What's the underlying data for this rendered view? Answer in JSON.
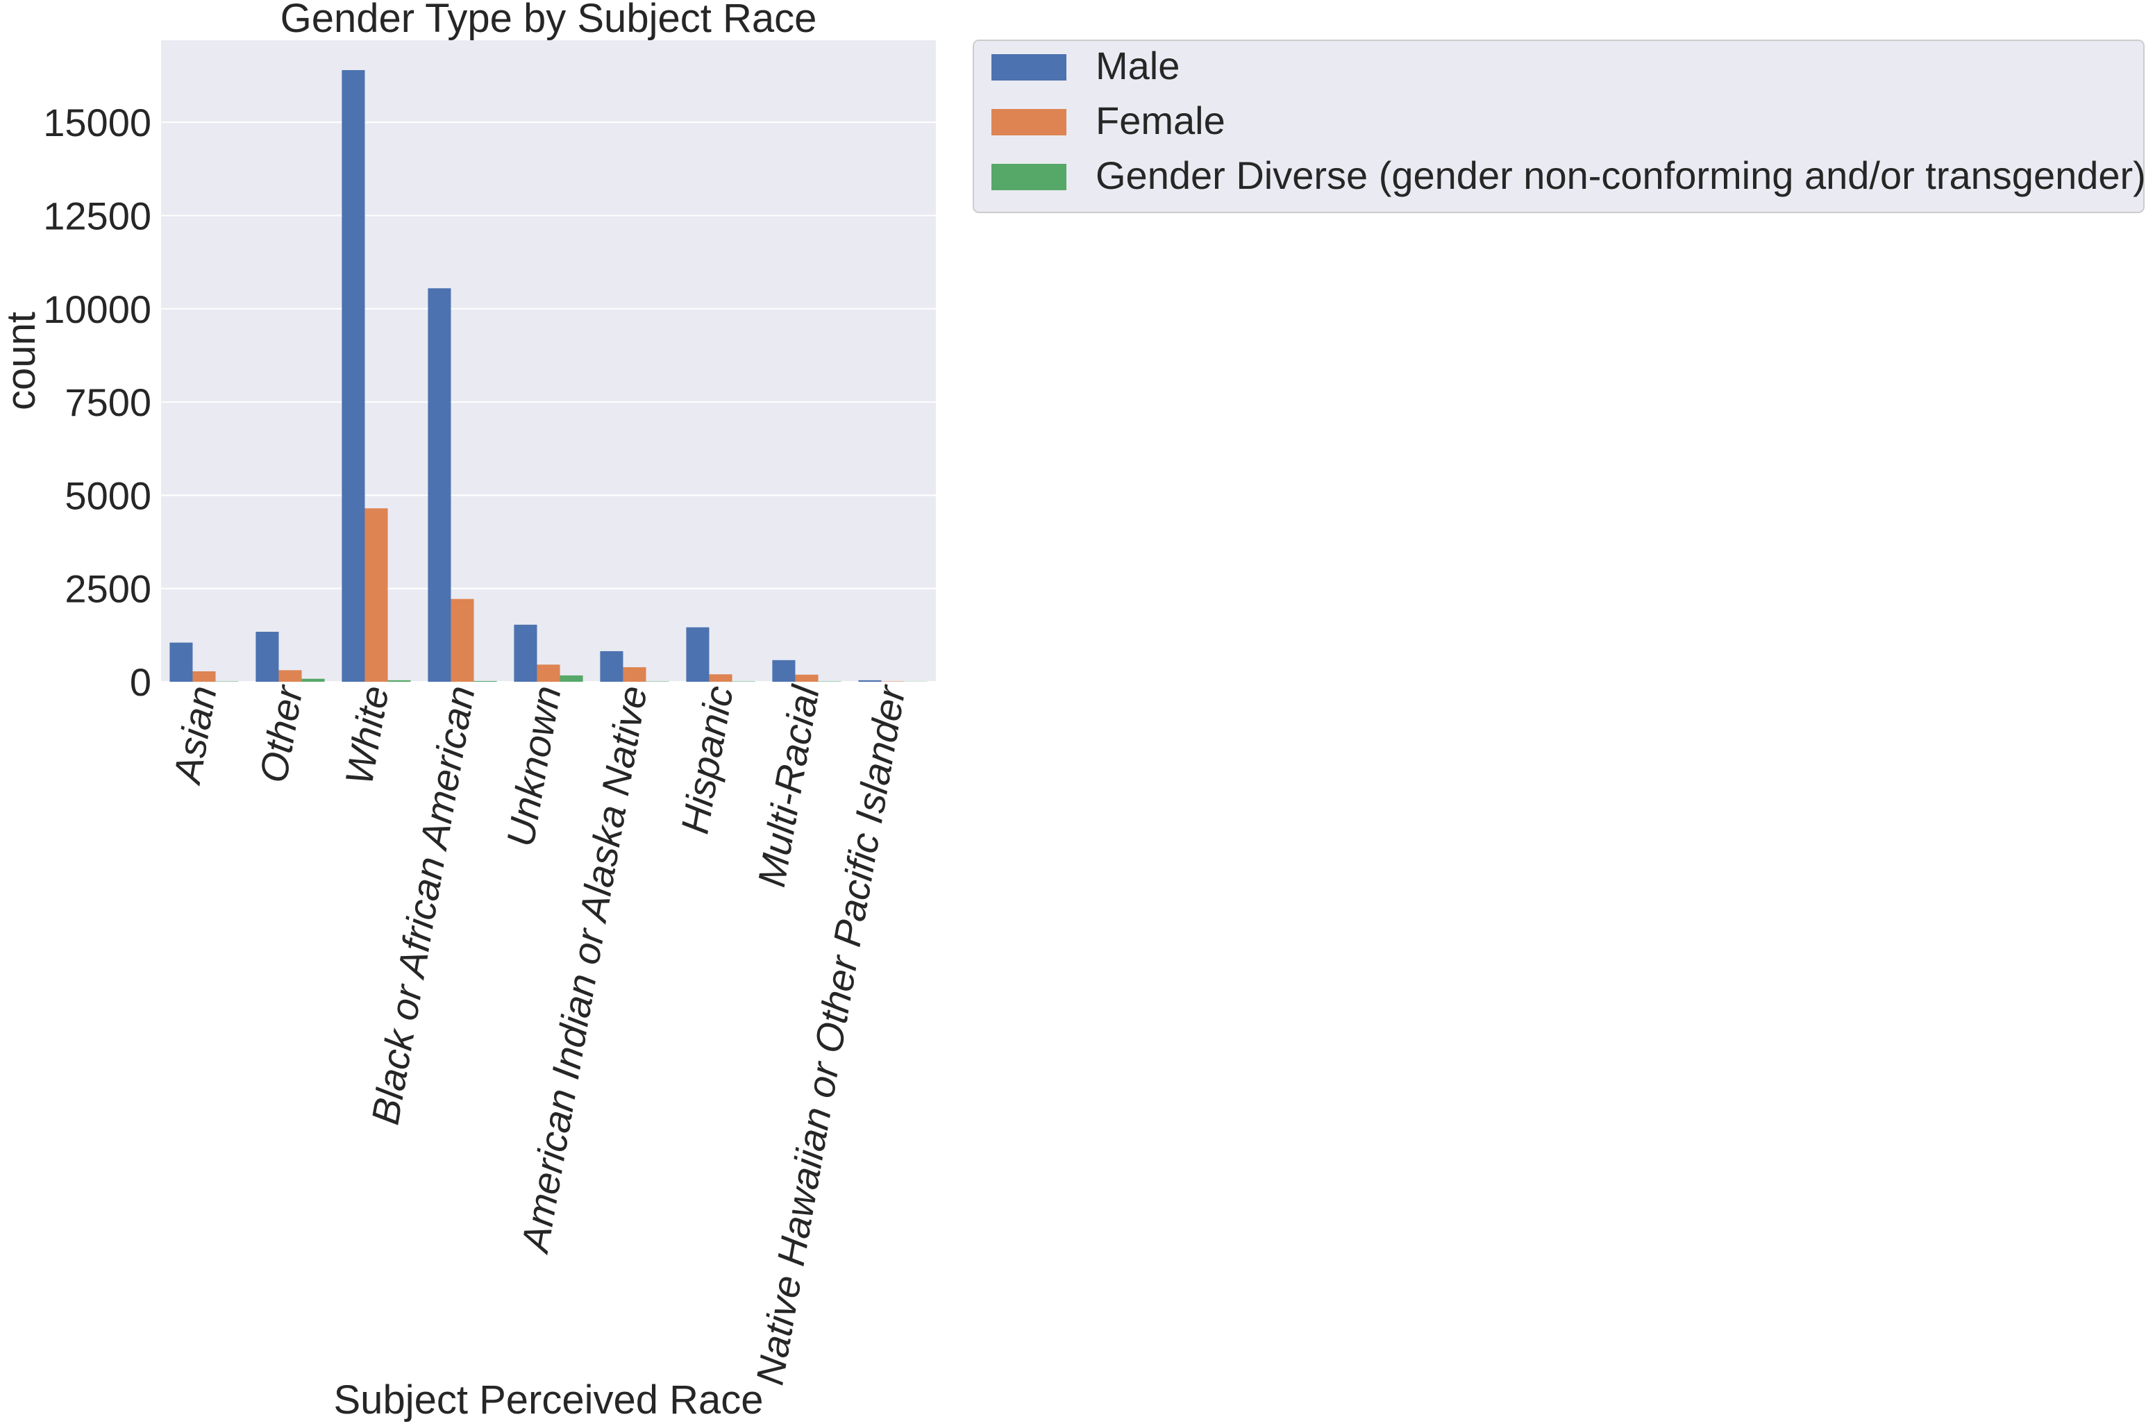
{
  "chart_data": {
    "type": "bar",
    "title": "Gender Type by Subject Race",
    "xlabel": "Subject Perceived Race",
    "ylabel": "count",
    "ylim": [
      0,
      17200
    ],
    "yticks": [
      0,
      2500,
      5000,
      7500,
      10000,
      12500,
      15000
    ],
    "grid": true,
    "legend_placement": "outside-top-right",
    "categories": [
      "Asian",
      "Other",
      "White",
      "Black or African American",
      "Unknown",
      "American Indian or Alaska Native",
      "Hispanic",
      "Multi-Racial",
      "Native Hawaiian or Other Pacific Islander"
    ],
    "series": [
      {
        "name": "Male",
        "color": "#4c72b0",
        "values": [
          1050,
          1340,
          16400,
          10550,
          1530,
          820,
          1460,
          580,
          40
        ]
      },
      {
        "name": "Female",
        "color": "#dd8452",
        "values": [
          280,
          310,
          4650,
          2220,
          460,
          390,
          200,
          190,
          10
        ]
      },
      {
        "name": "Gender Diverse (gender non-conforming and/or transgender)",
        "color": "#55a868",
        "values": [
          10,
          80,
          40,
          20,
          170,
          10,
          10,
          10,
          5
        ]
      }
    ]
  }
}
